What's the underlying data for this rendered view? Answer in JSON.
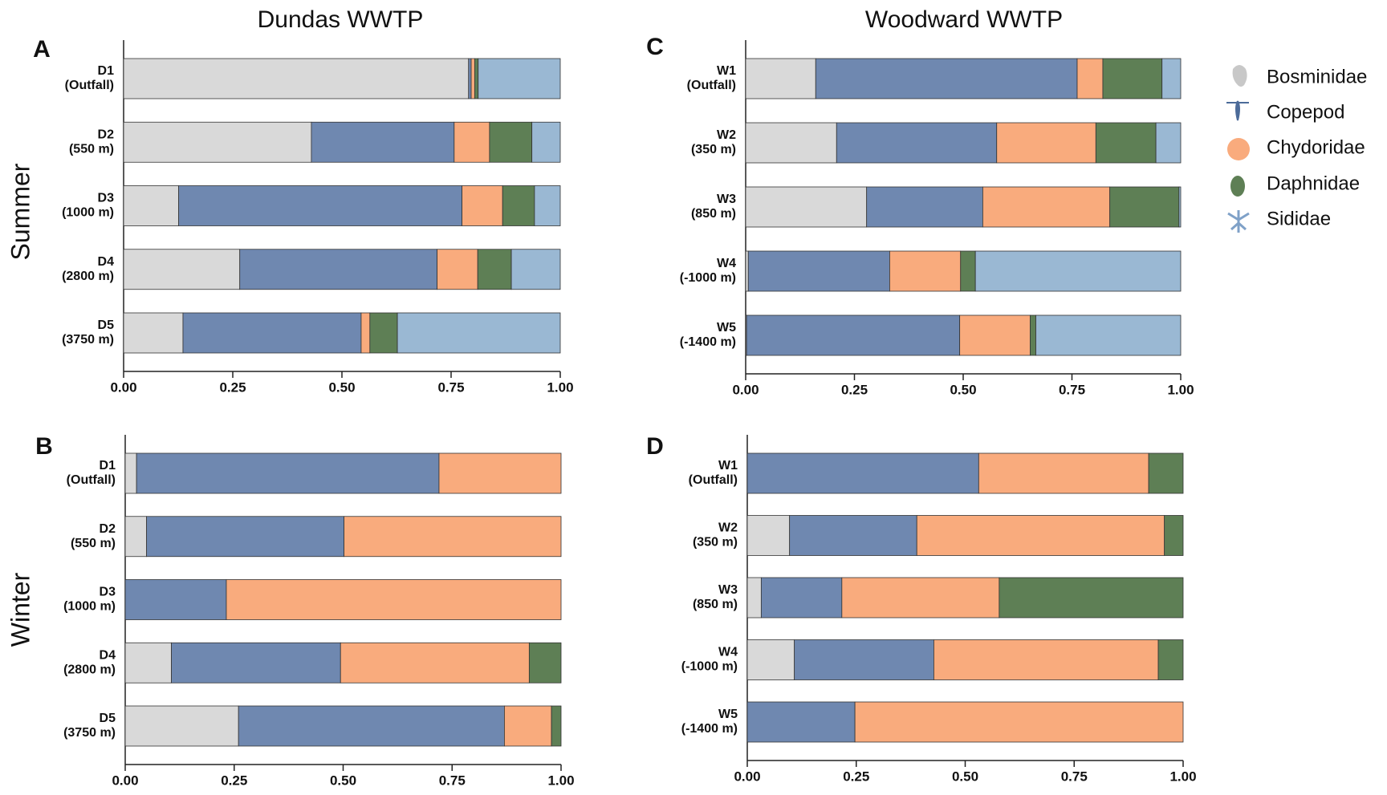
{
  "column_titles": [
    "Dundas WWTP",
    "Woodward WWTP"
  ],
  "row_titles": [
    "Summer",
    "Winter"
  ],
  "chart_data": [
    {
      "type": "bar",
      "orientation": "horizontal",
      "stacked": true,
      "panel": "A",
      "categories": [
        "D1\n(Outfall)",
        "D2\n(550 m)",
        "D3\n(1000 m)",
        "D4\n(2800 m)",
        "D5\n(3750 m)"
      ],
      "series": [
        {
          "name": "Bosminidae",
          "color": "#d9d9d9",
          "values": [
            0.79,
            0.43,
            0.126,
            0.266,
            0.136
          ]
        },
        {
          "name": "Copepod",
          "color": "#6f88b0",
          "values": [
            0.006,
            0.327,
            0.649,
            0.452,
            0.408
          ]
        },
        {
          "name": "Chydoridae",
          "color": "#f9ab7d",
          "values": [
            0.008,
            0.081,
            0.093,
            0.093,
            0.02
          ]
        },
        {
          "name": "Daphnidae",
          "color": "#5e7f55",
          "values": [
            0.008,
            0.097,
            0.073,
            0.077,
            0.063
          ]
        },
        {
          "name": "Sididae",
          "color": "#9ab8d3",
          "values": [
            0.188,
            0.065,
            0.059,
            0.112,
            0.373
          ]
        }
      ],
      "xlim": [
        0,
        1
      ],
      "xticks": [
        {
          "value": 0,
          "label": "0.00"
        },
        {
          "value": 0.25,
          "label": "0.25"
        },
        {
          "value": 0.5,
          "label": "0.50"
        },
        {
          "value": 0.75,
          "label": "0.75"
        },
        {
          "value": 1,
          "label": "1.00"
        }
      ]
    },
    {
      "type": "bar",
      "orientation": "horizontal",
      "stacked": true,
      "panel": "B",
      "categories": [
        "D1\n(Outfall)",
        "D2\n(550 m)",
        "D3\n(1000 m)",
        "D4\n(2800 m)",
        "D5\n(3750 m)"
      ],
      "series": [
        {
          "name": "Bosminidae",
          "color": "#d9d9d9",
          "values": [
            0.026,
            0.049,
            0,
            0.106,
            0.26
          ]
        },
        {
          "name": "Copepod",
          "color": "#6f88b0",
          "values": [
            0.694,
            0.453,
            0.232,
            0.388,
            0.61
          ]
        },
        {
          "name": "Chydoridae",
          "color": "#f9ab7d",
          "values": [
            0.28,
            0.498,
            0.768,
            0.433,
            0.108
          ]
        },
        {
          "name": "Daphnidae",
          "color": "#5e7f55",
          "values": [
            0,
            0,
            0,
            0.073,
            0.022
          ]
        }
      ],
      "xlim": [
        0,
        1
      ],
      "xticks": [
        {
          "value": 0,
          "label": "0.00"
        },
        {
          "value": 0.25,
          "label": "0.25"
        },
        {
          "value": 0.5,
          "label": "0.50"
        },
        {
          "value": 0.75,
          "label": "0.75"
        },
        {
          "value": 1,
          "label": "1.00"
        }
      ]
    },
    {
      "type": "bar",
      "orientation": "horizontal",
      "stacked": true,
      "panel": "C",
      "categories": [
        "W1\n(Outfall)",
        "W2\n(350 m)",
        "W3\n(850 m)",
        "W4\n(-1000 m)",
        "W5\n(-1400 m)"
      ],
      "series": [
        {
          "name": "Bosminidae",
          "color": "#d9d9d9",
          "values": [
            0.161,
            0.209,
            0.278,
            0.006,
            0.002
          ]
        },
        {
          "name": "Copepod",
          "color": "#6f88b0",
          "values": [
            0.601,
            0.368,
            0.267,
            0.325,
            0.49
          ]
        },
        {
          "name": "Chydoridae",
          "color": "#f9ab7d",
          "values": [
            0.059,
            0.228,
            0.292,
            0.163,
            0.162
          ]
        },
        {
          "name": "Daphnidae",
          "color": "#5e7f55",
          "values": [
            0.136,
            0.138,
            0.159,
            0.034,
            0.013
          ]
        },
        {
          "name": "Sididae",
          "color": "#9ab8d3",
          "values": [
            0.043,
            0.057,
            0.004,
            0.472,
            0.333
          ]
        }
      ],
      "xlim": [
        0,
        1
      ],
      "xticks": [
        {
          "value": 0,
          "label": "0.00"
        },
        {
          "value": 0.25,
          "label": "0.25"
        },
        {
          "value": 0.5,
          "label": "0.50"
        },
        {
          "value": 0.75,
          "label": "0.75"
        },
        {
          "value": 1,
          "label": "1.00"
        }
      ]
    },
    {
      "type": "bar",
      "orientation": "horizontal",
      "stacked": true,
      "panel": "D",
      "categories": [
        "W1\n(Outfall)",
        "W2\n(350 m)",
        "W3\n(850 m)",
        "W4\n(-1000 m)",
        "W5\n(-1400 m)"
      ],
      "series": [
        {
          "name": "Bosminidae",
          "color": "#d9d9d9",
          "values": [
            0,
            0.097,
            0.032,
            0.108,
            0
          ]
        },
        {
          "name": "Copepod",
          "color": "#6f88b0",
          "values": [
            0.531,
            0.292,
            0.185,
            0.32,
            0.247
          ]
        },
        {
          "name": "Chydoridae",
          "color": "#f9ab7d",
          "values": [
            0.39,
            0.568,
            0.361,
            0.515,
            0.753
          ]
        },
        {
          "name": "Daphnidae",
          "color": "#5e7f55",
          "values": [
            0.079,
            0.043,
            0.422,
            0.057,
            0
          ]
        }
      ],
      "xlim": [
        0,
        1
      ],
      "xticks": [
        {
          "value": 0,
          "label": "0.00"
        },
        {
          "value": 0.25,
          "label": "0.25"
        },
        {
          "value": 0.5,
          "label": "0.50"
        },
        {
          "value": 0.75,
          "label": "0.75"
        },
        {
          "value": 1,
          "label": "1.00"
        }
      ]
    }
  ]
}
